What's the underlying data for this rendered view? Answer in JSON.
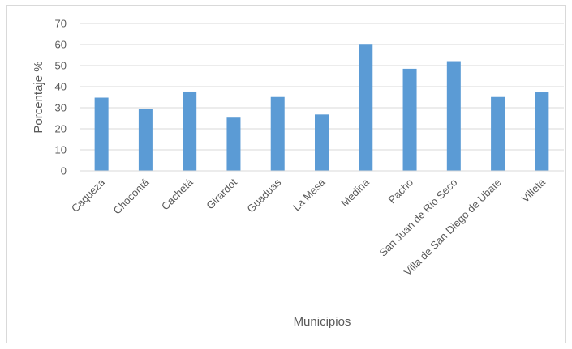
{
  "chart_data": {
    "type": "bar",
    "title": "",
    "xlabel": "Municipios",
    "ylabel": "Porcentaje %",
    "ylim": [
      0,
      70
    ],
    "yticks": [
      0,
      10,
      20,
      30,
      40,
      50,
      60,
      70
    ],
    "grid": true,
    "legend": "none",
    "bar_color": "#5b9bd5",
    "categories": [
      "Caqueza",
      "Chocontá",
      "Cachetá",
      "Girardot",
      "Guaduas",
      "La Mesa",
      "Medina",
      "Pacho",
      "San Juan de Rio Seco",
      "Villa de San Diego de Ubate",
      "Villeta"
    ],
    "values": [
      34.8,
      29.3,
      37.7,
      25.3,
      35.1,
      26.8,
      60.3,
      48.5,
      52.1,
      35.1,
      37.3
    ]
  }
}
